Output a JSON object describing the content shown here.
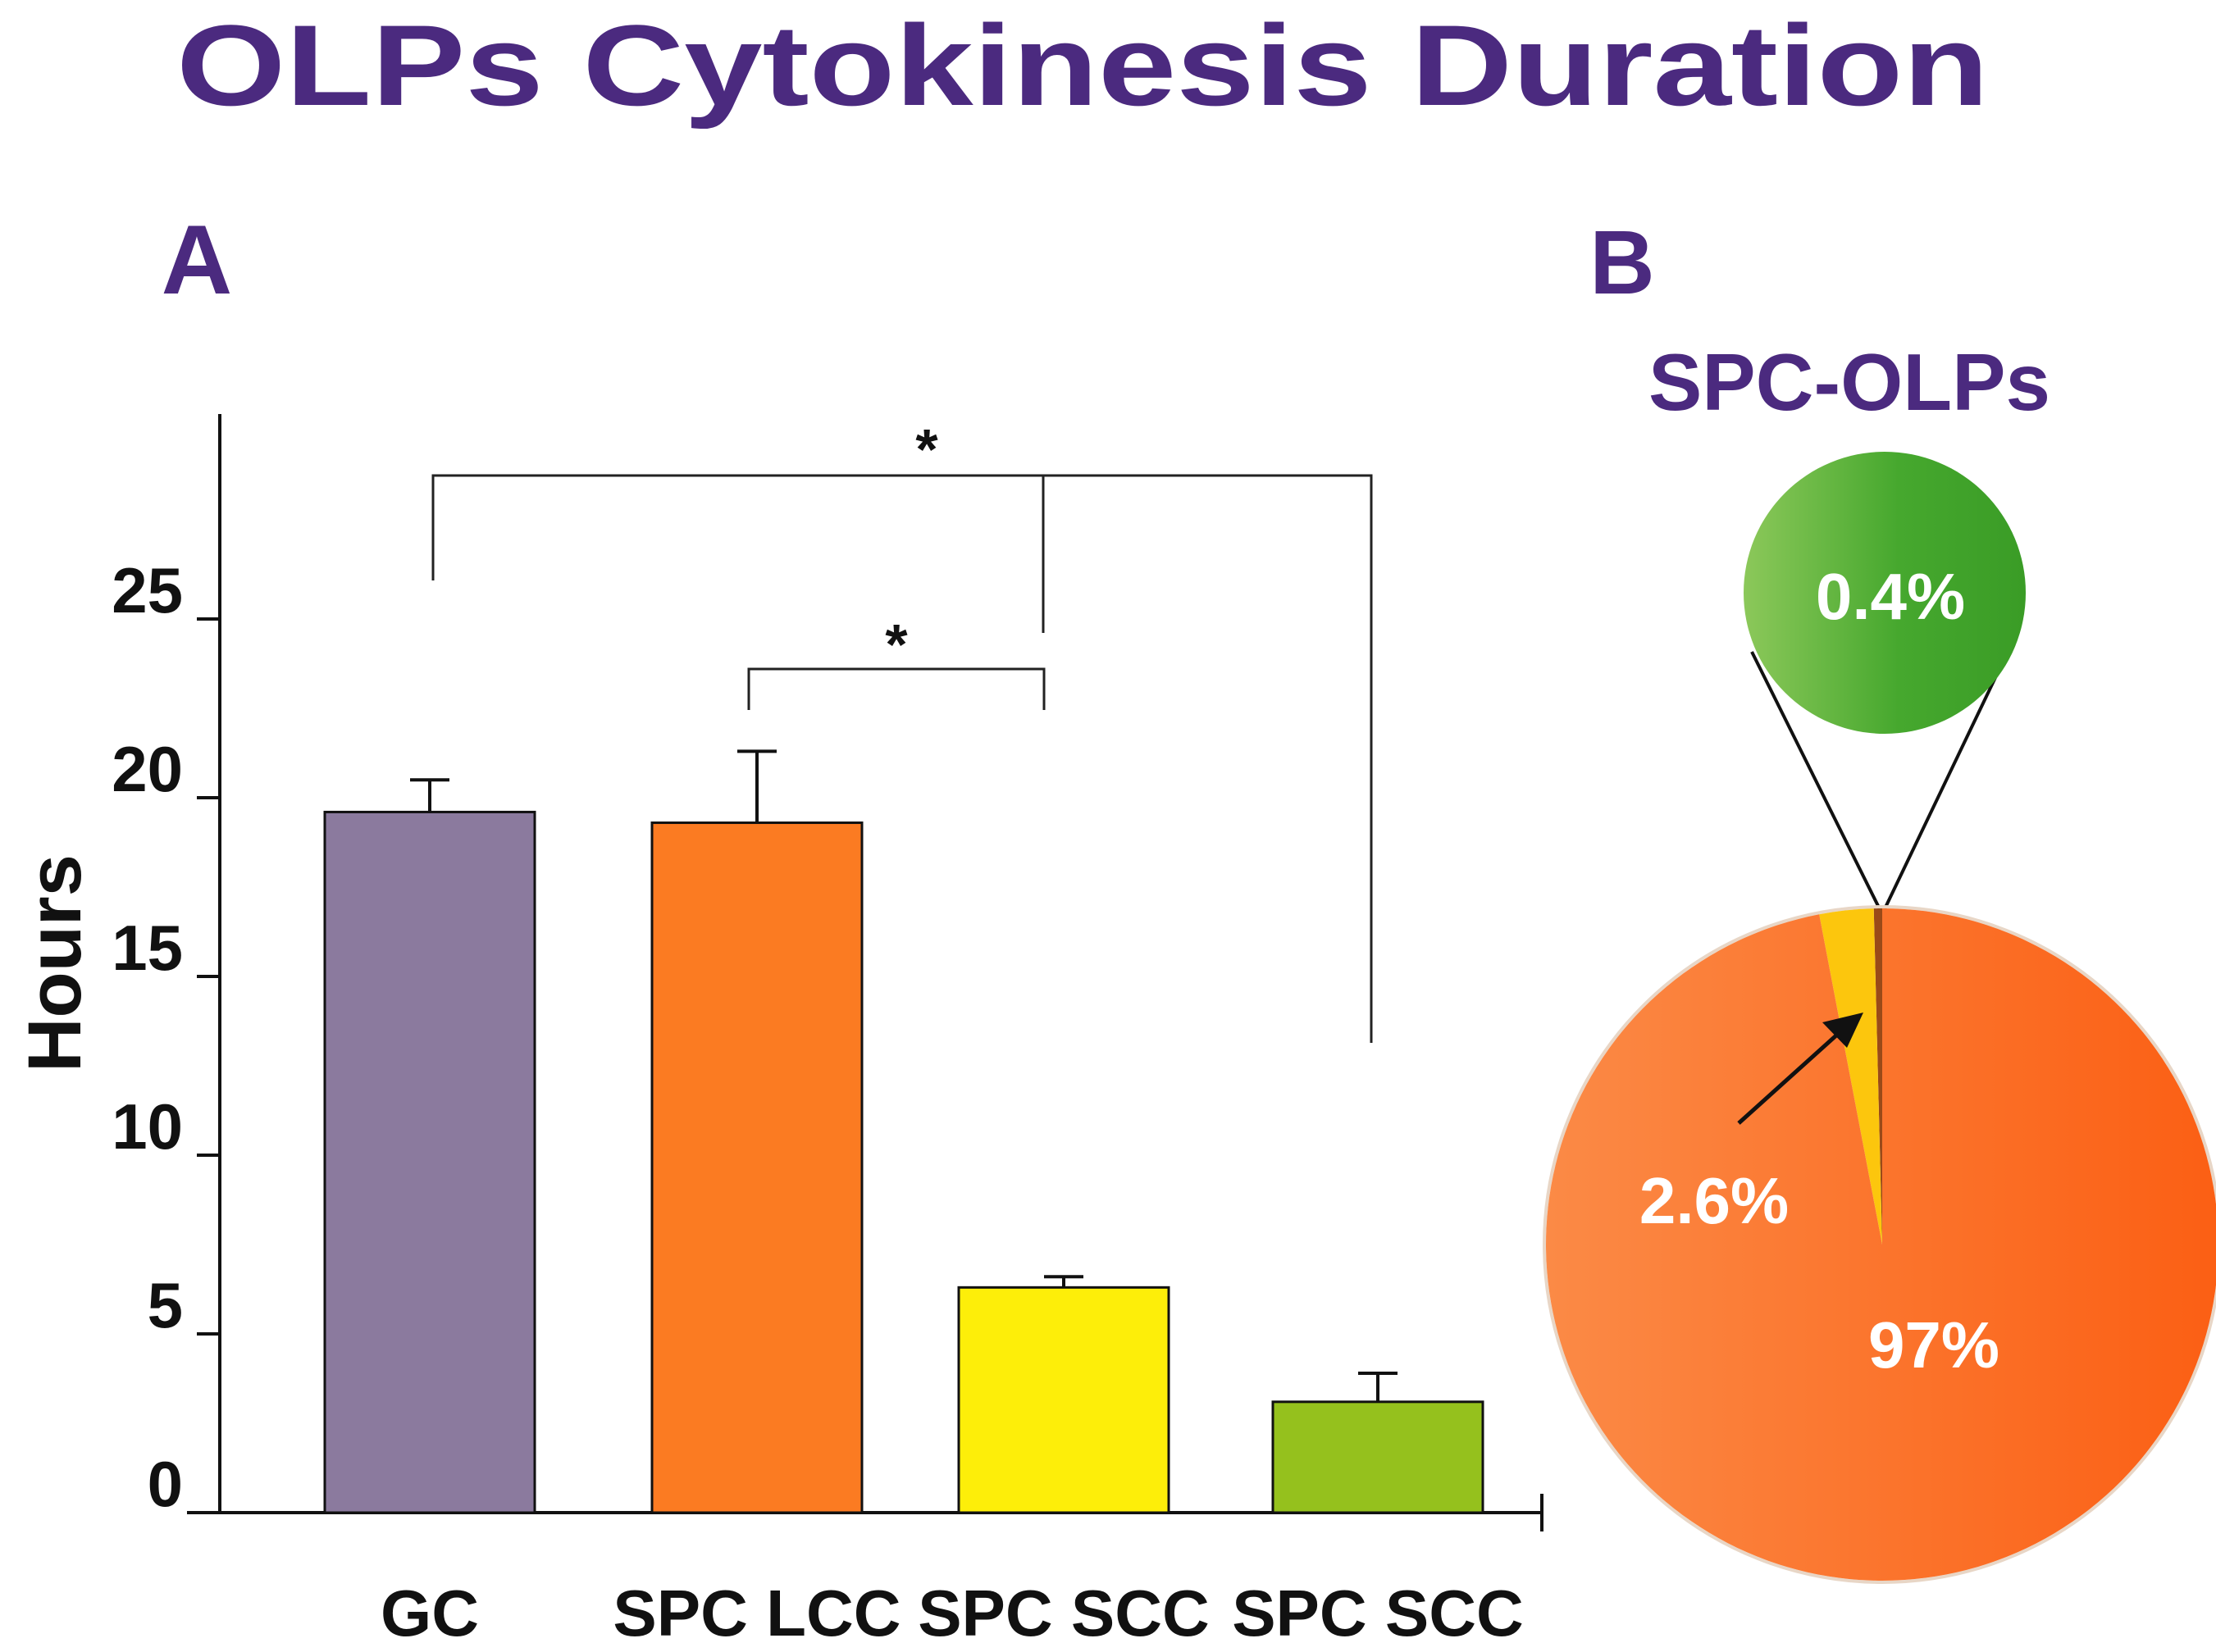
{
  "title": "OLPs Cytokinesis Duration",
  "chart_data": [
    {
      "panel": "A",
      "type": "bar",
      "ylabel": "Hours",
      "xlabel": "",
      "categories": [
        "GC",
        "SPC LCC",
        "SPC SCC",
        "SPC SCC"
      ],
      "values": [
        19.6,
        19.3,
        6.3,
        3.1
      ],
      "errors": [
        0.9,
        2.0,
        0.3,
        0.8
      ],
      "colors": [
        "#8b7a9e",
        "#fb7b22",
        "#fdee09",
        "#95c11d"
      ],
      "ylim": [
        0,
        30
      ],
      "yticks": [
        0,
        5,
        10,
        15,
        20,
        25
      ],
      "ytick_labels": [
        "0",
        "5",
        "10",
        "15",
        "20",
        "25"
      ],
      "significance": [
        {
          "label": "*",
          "from": "GC",
          "to": "SPC SCC + SPC SCC"
        },
        {
          "label": "*",
          "from": "SPC LCC",
          "to": "SPC SCC"
        }
      ]
    },
    {
      "panel": "B",
      "type": "pie",
      "title": "SPC-OLPs",
      "slices": [
        {
          "label": "97%",
          "value": 97.0,
          "color": "#fb7122"
        },
        {
          "label": "2.6%",
          "value": 2.6,
          "color": "#fcc60d"
        },
        {
          "label": "0.4%",
          "value": 0.4,
          "color": "#3fa535"
        }
      ],
      "inset_label": "0.4%"
    }
  ]
}
